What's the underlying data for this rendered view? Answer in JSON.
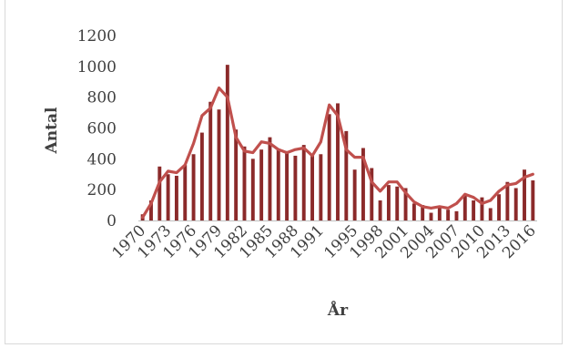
{
  "chart_data": {
    "type": "bar",
    "title": "",
    "xlabel": "År",
    "ylabel": "Antal",
    "ylim": [
      0,
      1200
    ],
    "yticks": [
      0,
      200,
      400,
      600,
      800,
      1000,
      1200
    ],
    "xtick_labels": [
      "1970",
      "1973",
      "1976",
      "1979",
      "1982",
      "1985",
      "1988",
      "1991",
      "1995",
      "1998",
      "2001",
      "2004",
      "2007",
      "2010",
      "2013",
      "2016"
    ],
    "grid": false,
    "legend": "none",
    "x": [
      1970,
      1971,
      1972,
      1973,
      1974,
      1975,
      1976,
      1977,
      1978,
      1979,
      1980,
      1981,
      1982,
      1983,
      1984,
      1985,
      1986,
      1987,
      1988,
      1989,
      1990,
      1991,
      1992,
      1993,
      1994,
      1995,
      1996,
      1997,
      1998,
      1999,
      2000,
      2001,
      2002,
      2003,
      2004,
      2005,
      2006,
      2007,
      2008,
      2009,
      2010,
      2011,
      2012,
      2013,
      2014,
      2015,
      2016
    ],
    "series": [
      {
        "type": "bar",
        "values": [
          40,
          130,
          350,
          300,
          290,
          360,
          430,
          570,
          770,
          720,
          1010,
          590,
          480,
          400,
          460,
          540,
          460,
          450,
          420,
          490,
          420,
          430,
          690,
          760,
          580,
          330,
          470,
          340,
          130,
          230,
          220,
          210,
          110,
          100,
          50,
          80,
          70,
          60,
          170,
          130,
          150,
          80,
          170,
          250,
          210,
          330,
          260
        ],
        "color": "#8b2a2a"
      },
      {
        "type": "line",
        "values": [
          20,
          110,
          250,
          320,
          310,
          360,
          500,
          680,
          730,
          860,
          800,
          540,
          450,
          440,
          510,
          500,
          460,
          440,
          460,
          470,
          420,
          510,
          750,
          680,
          460,
          410,
          410,
          250,
          190,
          250,
          250,
          180,
          120,
          90,
          80,
          90,
          80,
          110,
          170,
          150,
          110,
          130,
          190,
          230,
          240,
          280,
          300
        ],
        "color": "#c0504d"
      }
    ]
  }
}
